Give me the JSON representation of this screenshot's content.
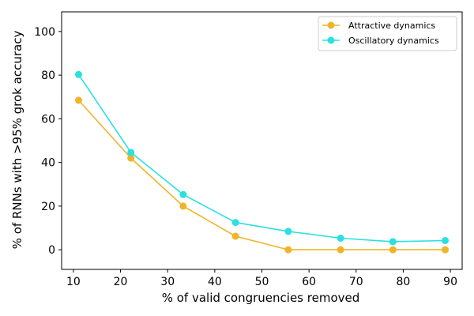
{
  "chart_data": {
    "type": "line",
    "title": "",
    "xlabel": "% of valid congruencies removed",
    "ylabel": "% of RNNs with >95% grok accuracy",
    "xlim": [
      7.5,
      92.5
    ],
    "ylim": [
      -9,
      109
    ],
    "xticks": [
      10,
      20,
      30,
      40,
      50,
      60,
      70,
      80,
      90
    ],
    "yticks": [
      0,
      20,
      40,
      60,
      80,
      100
    ],
    "grid": false,
    "legend_position": "top-right",
    "x": [
      11.1,
      22.2,
      33.3,
      44.4,
      55.6,
      66.7,
      77.8,
      88.9
    ],
    "series": [
      {
        "name": "Attractive dynamics",
        "color": "#F0B429",
        "values": [
          68.5,
          42,
          20,
          6.2,
          0,
          0,
          0,
          0
        ]
      },
      {
        "name": "Oscillatory dynamics",
        "color": "#2BE0E0",
        "values": [
          80.3,
          44.6,
          25.3,
          12.5,
          8.4,
          5.3,
          3.7,
          4.2
        ]
      }
    ]
  }
}
